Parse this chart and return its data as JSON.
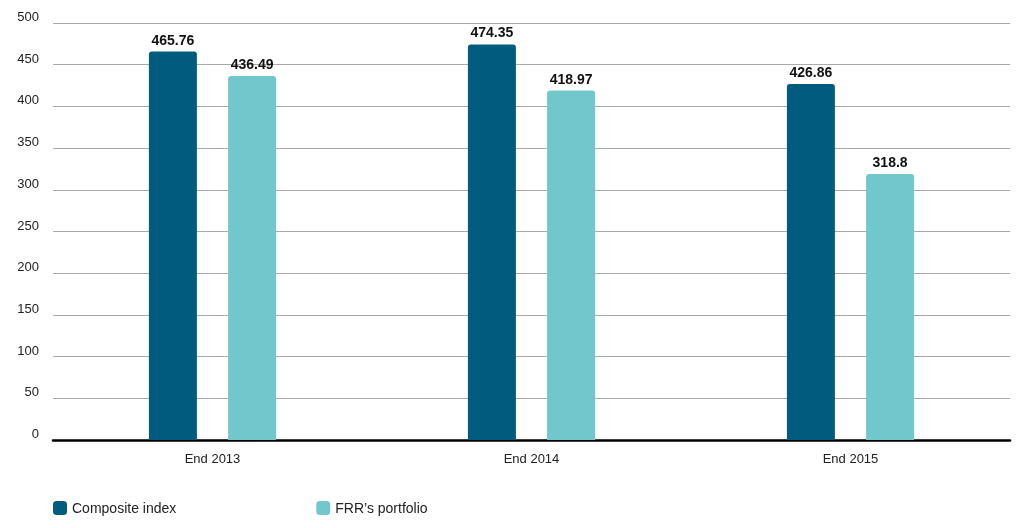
{
  "chart_data": {
    "type": "bar",
    "categories": [
      "End 2013",
      "End 2014",
      "End 2015"
    ],
    "series": [
      {
        "name": "Composite index",
        "color": "#005b7f",
        "values": [
          465.76,
          474.35,
          426.86
        ]
      },
      {
        "name": "FRR’s portfolio",
        "color": "#72c7cc",
        "values": [
          436.49,
          418.97,
          318.8
        ]
      }
    ],
    "ylim": [
      0,
      500
    ],
    "yticks": [
      0,
      50,
      100,
      150,
      200,
      250,
      300,
      350,
      400,
      450,
      500
    ],
    "grid": "y",
    "legend": "bottom left",
    "data_labels": true
  }
}
